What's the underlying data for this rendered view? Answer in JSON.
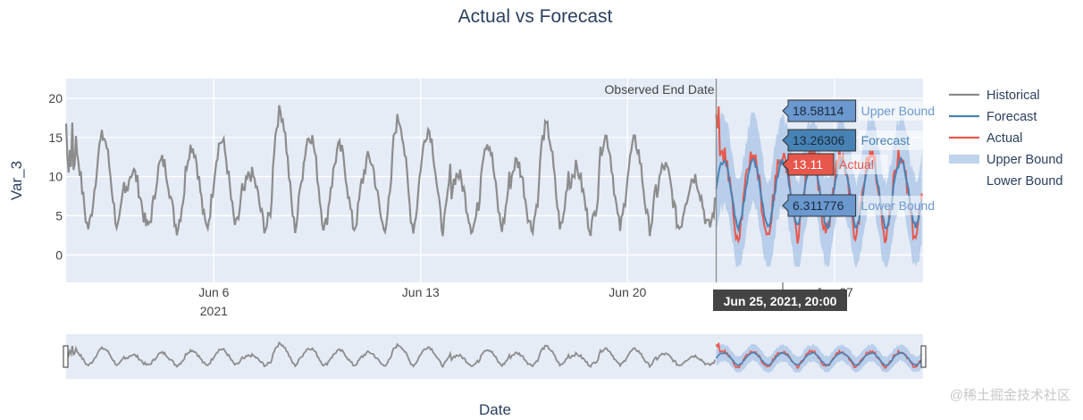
{
  "chart_data": {
    "type": "line",
    "title": "Actual vs Forecast",
    "xlabel": "Date",
    "ylabel": "Var_3",
    "x_range": [
      "2021-06-01",
      "2021-06-30"
    ],
    "ylim": [
      -3.5,
      22.5
    ],
    "y_ticks": [
      0,
      5,
      10,
      15,
      20
    ],
    "x_ticks": [
      {
        "date": "2021-06-06",
        "label": "Jun 6",
        "sublabel": "2021"
      },
      {
        "date": "2021-06-13",
        "label": "Jun 13",
        "sublabel": ""
      },
      {
        "date": "2021-06-20",
        "label": "Jun 20",
        "sublabel": ""
      },
      {
        "date": "2021-06-27",
        "label": "Jun 27",
        "sublabel": ""
      }
    ],
    "grid": true,
    "legend_position": "right",
    "observed_end_date": "2021-06-23",
    "observed_end_label": "Observed End Date",
    "series": [
      {
        "name": "Historical",
        "color": "#8c8c8c",
        "period": "2021-06-01 to 2021-06-23",
        "daily_cycle_low": 3.5,
        "daily_cycle_high": 14,
        "peak_max": 19.5
      },
      {
        "name": "Forecast",
        "color": "#4682b4",
        "period": "2021-06-23 to 2021-06-30",
        "daily_cycle_low": 3.5,
        "daily_cycle_high": 12
      },
      {
        "name": "Actual",
        "color": "#e8574b",
        "period": "2021-06-23 to 2021-06-30",
        "daily_cycle_low": 2.5,
        "daily_cycle_high": 13,
        "peak_max": 21
      },
      {
        "name": "Upper Bound",
        "color": "#a8c4e5",
        "period": "2021-06-23 to 2021-06-30",
        "daily_cycle_high": 18.5
      },
      {
        "name": "Lower Bound",
        "color": "#a8c4e5",
        "period": "2021-06-23 to 2021-06-30",
        "daily_cycle_low": -1.5
      }
    ],
    "hover": {
      "date_label": "Jun 25, 2021, 20:00",
      "points": [
        {
          "value": "18.58114",
          "name": "Upper Bound",
          "y": 18.58114,
          "box_color": "#6a98cf",
          "text_color": "#6a98cf"
        },
        {
          "value": "13.26306",
          "name": "Forecast",
          "y": 13.26306,
          "box_color": "#4682b4",
          "text_color": "#4682b4"
        },
        {
          "value": "13.11",
          "name": "Actual",
          "y": 13.11,
          "box_color": "#e8574b",
          "text_color": "#e8574b"
        },
        {
          "value": "6.311776",
          "name": "Lower Bound",
          "y": 6.311776,
          "box_color": "#6a98cf",
          "text_color": "#6a98cf"
        }
      ]
    },
    "legend": [
      "Historical",
      "Forecast",
      "Actual",
      "Upper Bound",
      "Lower Bound"
    ]
  },
  "watermark": "@稀土掘金技术社区"
}
